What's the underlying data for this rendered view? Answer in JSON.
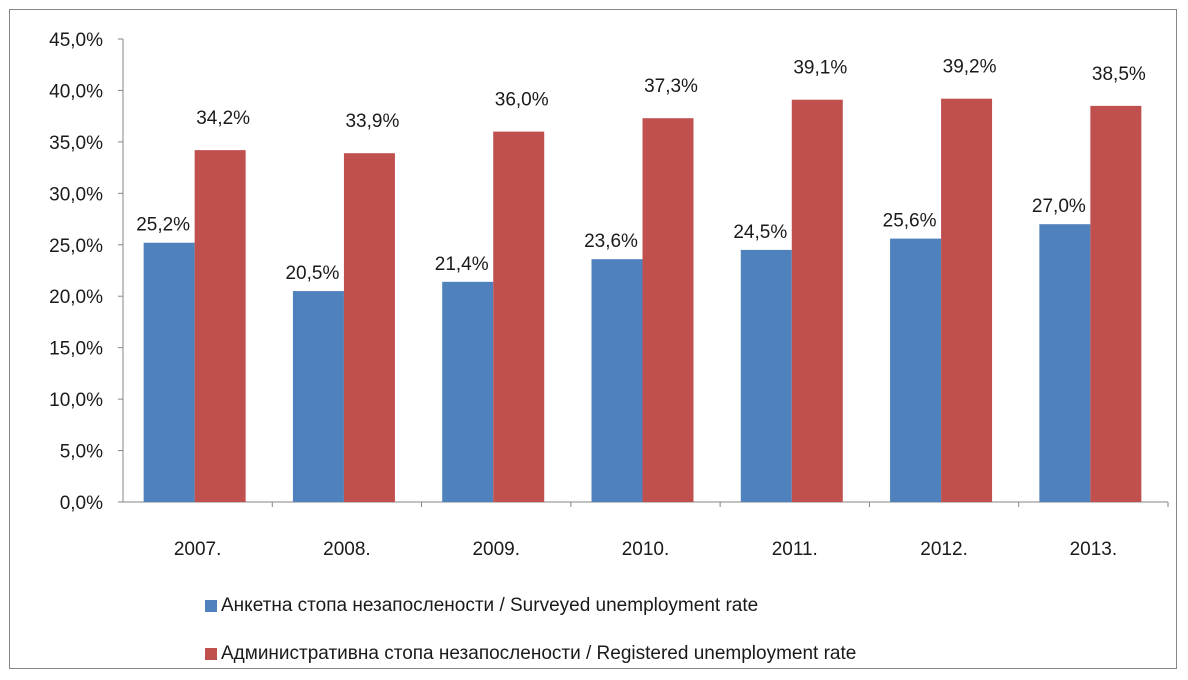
{
  "chart_data": {
    "type": "bar",
    "categories": [
      "2007.",
      "2008.",
      "2009.",
      "2010.",
      "2011.",
      "2012.",
      "2013."
    ],
    "series": [
      {
        "name": "Анкетна стопа незапослености / Surveyed unemployment rate",
        "color": "#4f81bd",
        "values": [
          25.2,
          20.5,
          21.4,
          23.6,
          24.5,
          25.6,
          27.0
        ],
        "labels": [
          "25,2%",
          "20,5%",
          "21,4%",
          "23,6%",
          "24,5%",
          "25,6%",
          "27,0%"
        ]
      },
      {
        "name": "Административна стопа незапослености / Registered unemployment rate",
        "color": "#c0504d",
        "values": [
          34.2,
          33.9,
          36.0,
          37.3,
          39.1,
          39.2,
          38.5
        ],
        "labels": [
          "34,2%",
          "33,9%",
          "36,0%",
          "37,3%",
          "39,1%",
          "39,2%",
          "38,5%"
        ]
      }
    ],
    "ylim": [
      0,
      45
    ],
    "yticks": [
      0,
      5,
      10,
      15,
      20,
      25,
      30,
      35,
      40,
      45
    ],
    "ytick_labels": [
      "0,0%",
      "5,0%",
      "10,0%",
      "15,0%",
      "20,0%",
      "25,0%",
      "30,0%",
      "35,0%",
      "40,0%",
      "45,0%"
    ],
    "grid": false,
    "legend_position": "bottom"
  }
}
